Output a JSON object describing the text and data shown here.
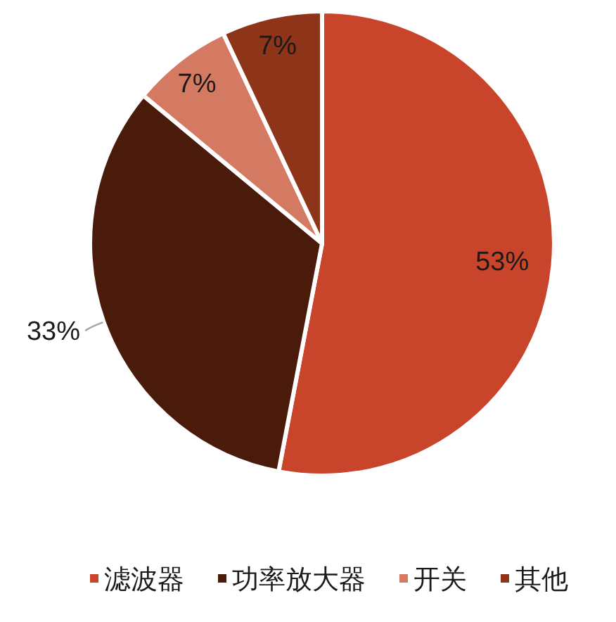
{
  "chart_data": {
    "type": "pie",
    "categories": [
      "滤波器",
      "功率放大器",
      "开关",
      "其他"
    ],
    "values": [
      53,
      33,
      7,
      7
    ],
    "colors": [
      "#C8442A",
      "#4A1A0B",
      "#D47A62",
      "#8E3418"
    ],
    "value_labels": [
      "53%",
      "33%",
      "7%",
      "7%"
    ],
    "legend": "bottom"
  }
}
